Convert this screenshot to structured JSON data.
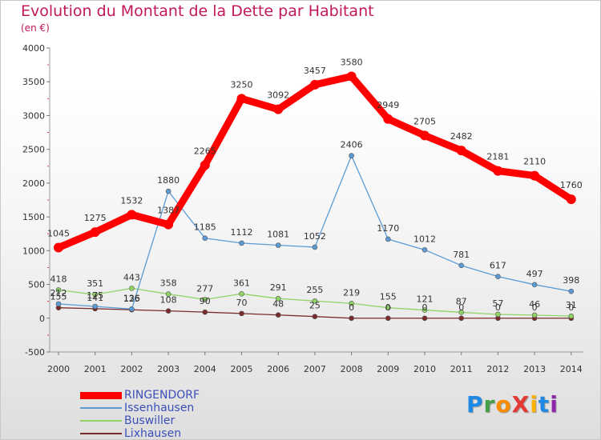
{
  "title": "Evolution du Montant de la Dette par Habitant",
  "subtitle": "(en €)",
  "logo": {
    "text": "ProXiti",
    "colors": [
      "#1e88e5",
      "#43a047",
      "#fb8c00",
      "#e53935",
      "#ffb300",
      "#1e88e5",
      "#8e24aa"
    ]
  },
  "chart_data": {
    "type": "line",
    "title": "Evolution du Montant de la Dette par Habitant",
    "subtitle": "(en €)",
    "xlabel": "",
    "ylabel": "",
    "x": [
      "2000",
      "2001",
      "2002",
      "2003",
      "2004",
      "2005",
      "2006",
      "2007",
      "2008",
      "2009",
      "2010",
      "2011",
      "2012",
      "2013",
      "2014"
    ],
    "ylim": [
      -500,
      4000
    ],
    "yticks": [
      4000,
      3500,
      3000,
      2500,
      2000,
      1500,
      1000,
      500,
      0,
      -500
    ],
    "grid": false,
    "legend_position": "bottom-left",
    "series": [
      {
        "name": "RINGENDORF",
        "color": "#ff0000",
        "values": [
          1045,
          1275,
          1532,
          1387,
          2265,
          3250,
          3092,
          3457,
          3580,
          2949,
          2705,
          2482,
          2181,
          2110,
          1760
        ],
        "labels": [
          "1045",
          "1275",
          "1532",
          "1387",
          "2265",
          "3250",
          "3092",
          "3457",
          "3580",
          "2949",
          "2705",
          "2482",
          "2181",
          "2110",
          "1760"
        ]
      },
      {
        "name": "Issenhausen",
        "color": "#5b9bd5",
        "values": [
          212,
          175,
          136,
          1880,
          1185,
          1112,
          1081,
          1052,
          2406,
          1170,
          1012,
          781,
          617,
          497,
          398
        ],
        "labels": [
          "212",
          "175",
          "136",
          "1880",
          "1185",
          "1112",
          "1081",
          "1052",
          "2406",
          "1170",
          "1012",
          "781",
          "617",
          "497",
          "398"
        ]
      },
      {
        "name": "Buswiller",
        "color": "#8fd465",
        "values": [
          418,
          351,
          443,
          358,
          277,
          361,
          291,
          255,
          219,
          155,
          121,
          87,
          57,
          46,
          31
        ],
        "labels": [
          "418",
          "351",
          "443",
          "358",
          "277",
          "361",
          "291",
          "255",
          "219",
          "155",
          "121",
          "87",
          "57",
          "46",
          "31"
        ]
      },
      {
        "name": "Lixhausen",
        "color": "#7a2a2a",
        "values": [
          155,
          141,
          125,
          108,
          90,
          70,
          48,
          25,
          0,
          0,
          0,
          0,
          0,
          0,
          0
        ],
        "labels": [
          "155",
          "141",
          "125",
          "108",
          "90",
          "70",
          "48",
          "25",
          "0",
          "0",
          "0",
          "0",
          "0",
          "0",
          "0"
        ]
      }
    ]
  }
}
